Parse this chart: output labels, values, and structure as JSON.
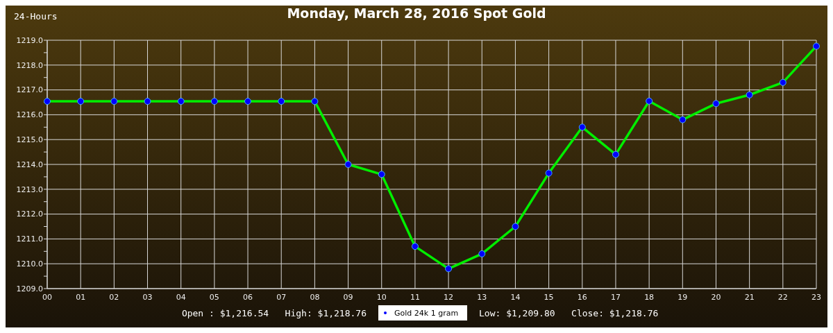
{
  "chart_data": {
    "type": "line",
    "title": "Monday, March 28, 2016 Spot Gold",
    "categories": [
      "00",
      "01",
      "02",
      "03",
      "04",
      "05",
      "06",
      "07",
      "08",
      "09",
      "10",
      "11",
      "12",
      "13",
      "14",
      "15",
      "16",
      "17",
      "18",
      "19",
      "20",
      "21",
      "22",
      "23"
    ],
    "series": [
      {
        "name": "Gold 24k 1 gram",
        "color": "#00ee00",
        "values": [
          1216.54,
          1216.54,
          1216.54,
          1216.54,
          1216.54,
          1216.54,
          1216.54,
          1216.54,
          1216.54,
          1214.0,
          1213.6,
          1210.7,
          1209.8,
          1210.4,
          1211.5,
          1213.65,
          1215.5,
          1214.4,
          1216.55,
          1215.8,
          1216.45,
          1216.8,
          1217.3,
          1218.76
        ]
      }
    ],
    "ylim": [
      1209,
      1219
    ],
    "yticks": [
      {
        "value": 1209,
        "label": "1209.0"
      },
      {
        "value": 1209.5,
        "label": null
      },
      {
        "value": 1210,
        "label": "1210.0"
      },
      {
        "value": 1210.5,
        "label": null
      },
      {
        "value": 1211,
        "label": "1211.0"
      },
      {
        "value": 1211.5,
        "label": null
      },
      {
        "value": 1212,
        "label": "1212.0"
      },
      {
        "value": 1212.5,
        "label": null
      },
      {
        "value": 1213,
        "label": "1213.0"
      },
      {
        "value": 1213.5,
        "label": null
      },
      {
        "value": 1214,
        "label": "1214.0"
      },
      {
        "value": 1214.5,
        "label": null
      },
      {
        "value": 1215,
        "label": "1215.0"
      },
      {
        "value": 1215.5,
        "label": null
      },
      {
        "value": 1216,
        "label": "1216.0"
      },
      {
        "value": 1216.5,
        "label": null
      },
      {
        "value": 1217,
        "label": "1217.0"
      },
      {
        "value": 1217.5,
        "label": null
      },
      {
        "value": 1218,
        "label": "1218.0"
      },
      {
        "value": 1218.5,
        "label": null
      },
      {
        "value": 1219,
        "label": "1219.0"
      }
    ],
    "grid": true,
    "marker": "circle",
    "legend": "bottom",
    "annotations": [
      "24-Hours",
      "Open : $1,216.54",
      "High: $1,218.76",
      "Low: $1,209.80",
      "Close: $1,218.76"
    ]
  }
}
